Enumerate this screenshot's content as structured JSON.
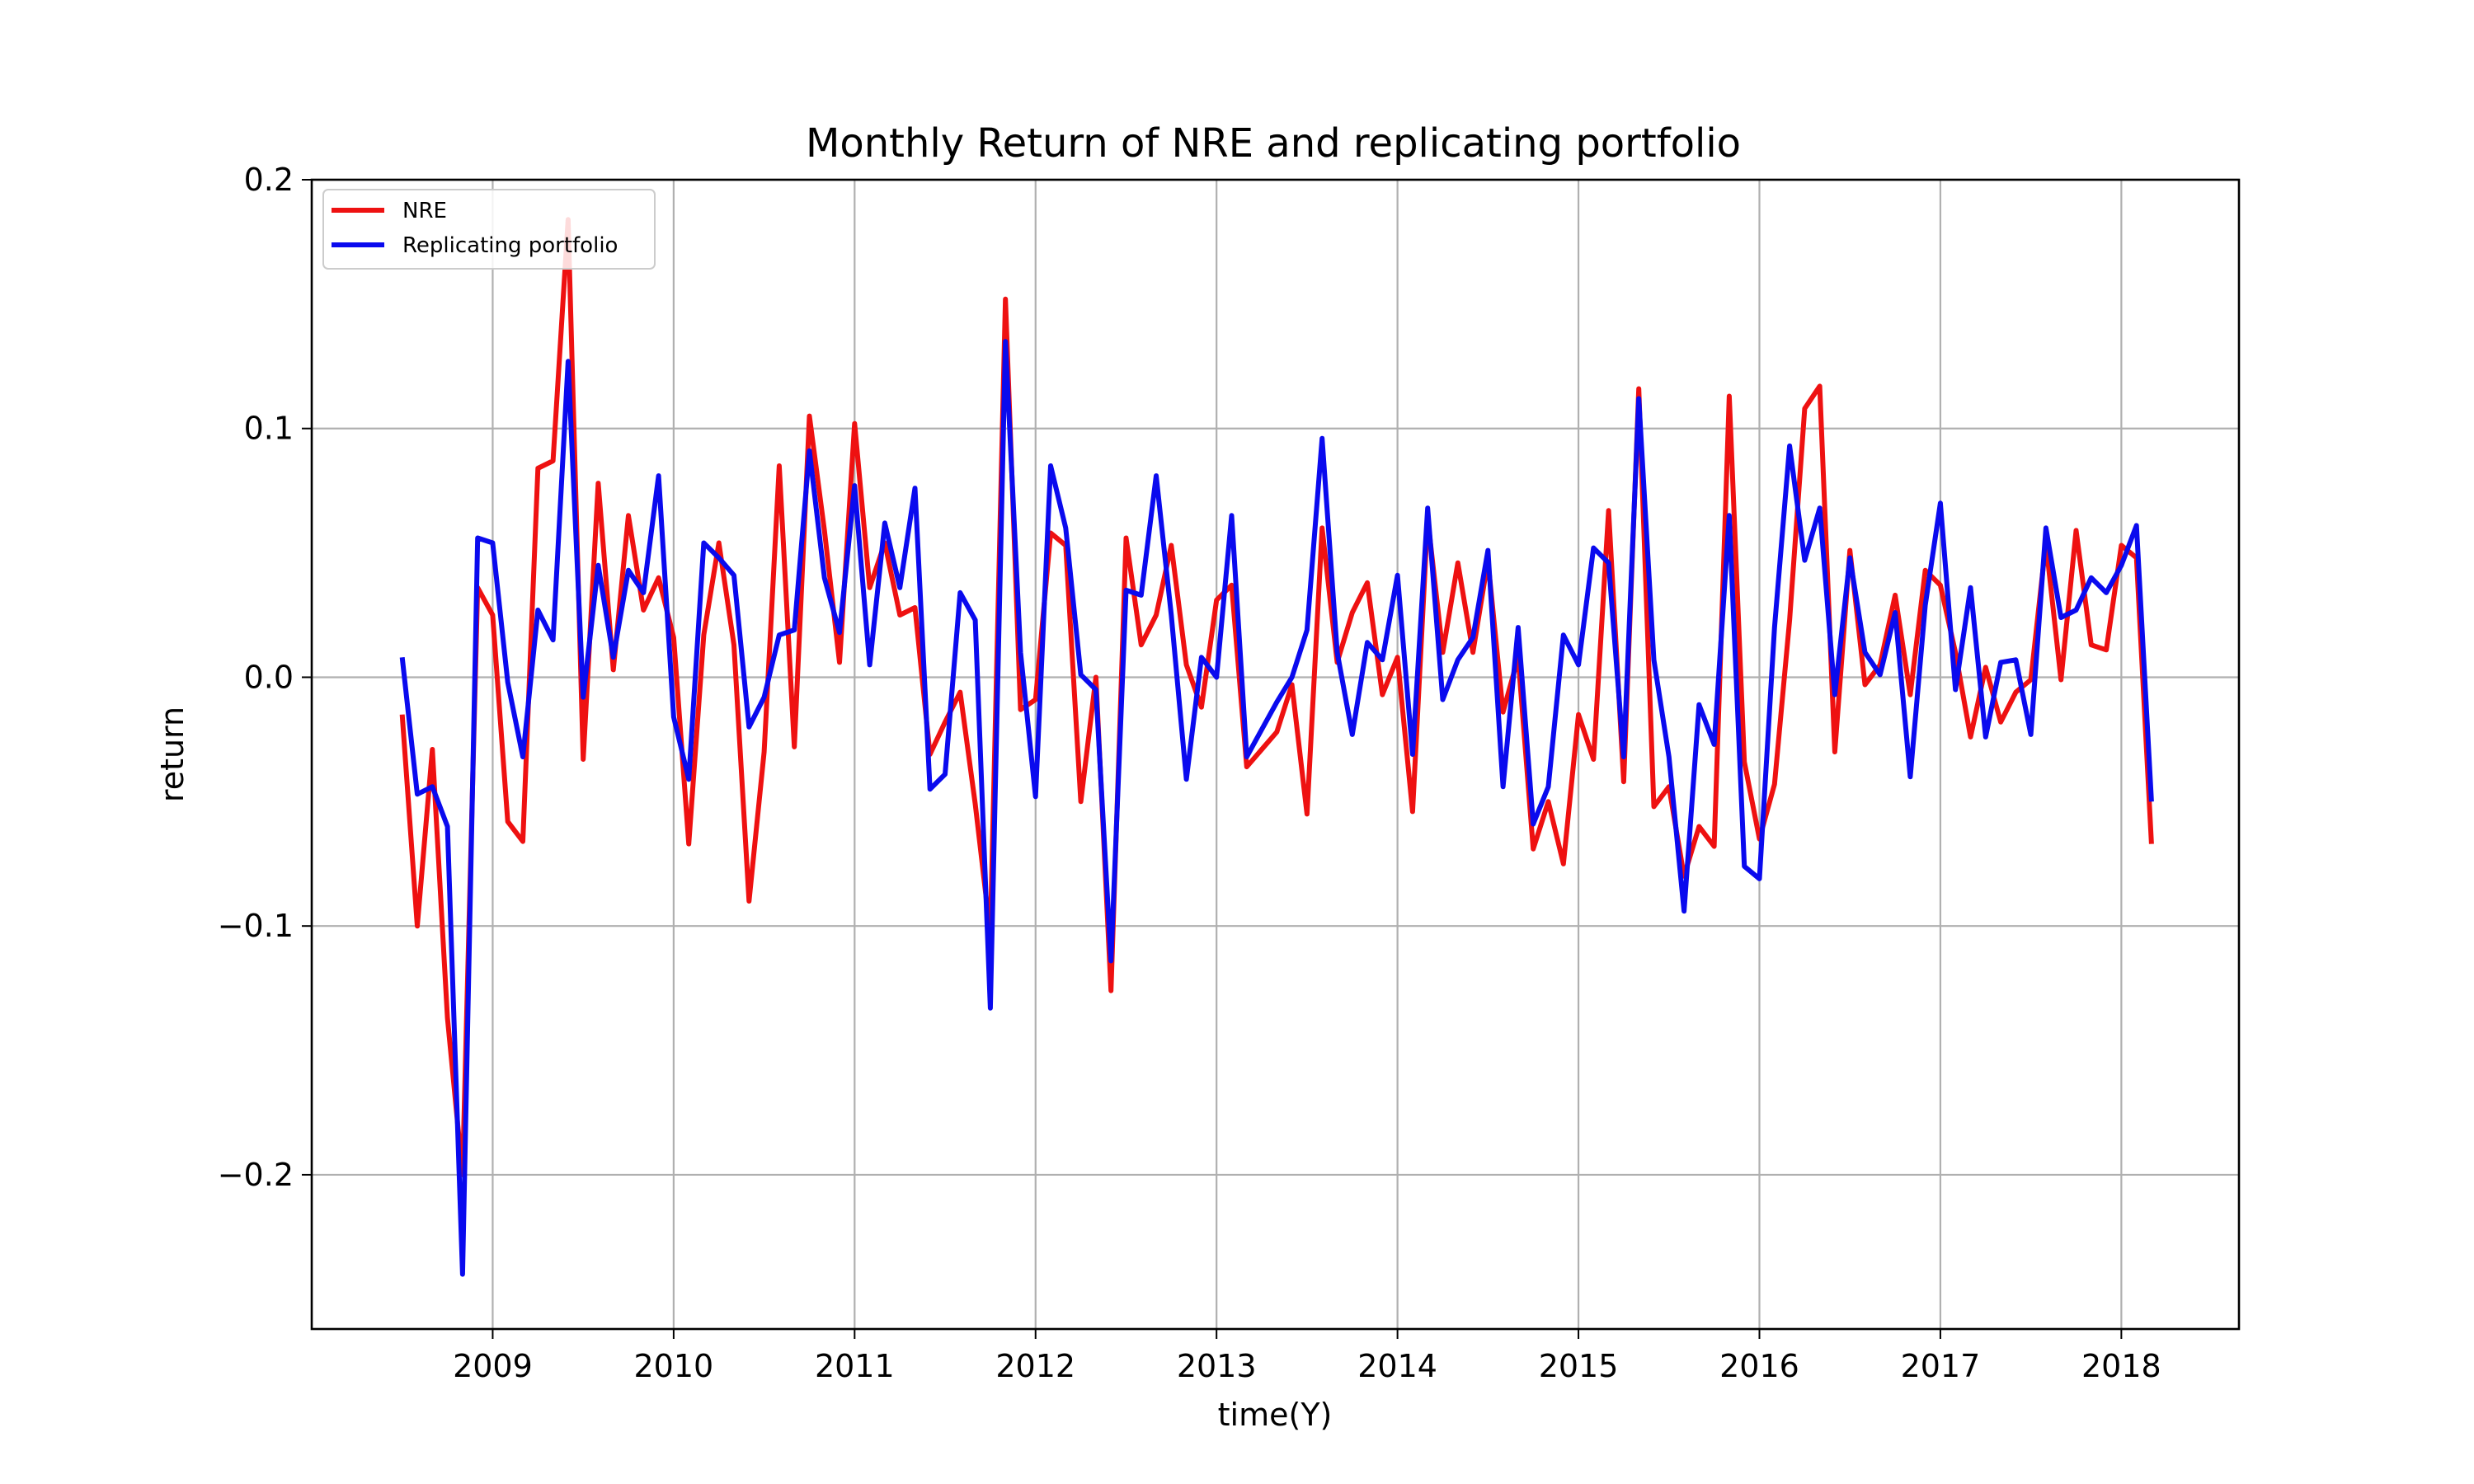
{
  "chart_data": {
    "type": "line",
    "title": "Monthly Return of NRE and replicating portfolio",
    "xlabel": "time(Y)",
    "ylabel": "return",
    "xlim": [
      2008.0,
      2018.65
    ],
    "ylim": [
      -0.262,
      0.2
    ],
    "x_ticks": [
      2009,
      2010,
      2011,
      2012,
      2013,
      2014,
      2015,
      2016,
      2017,
      2018
    ],
    "x_tick_labels": [
      "2009",
      "2010",
      "2011",
      "2012",
      "2013",
      "2014",
      "2015",
      "2016",
      "2017",
      "2018"
    ],
    "y_ticks": [
      -0.2,
      -0.1,
      0.0,
      0.1,
      0.2
    ],
    "y_tick_labels": [
      "−0.2",
      "−0.1",
      "0.0",
      "0.1",
      "0.2"
    ],
    "grid": true,
    "legend_position": "top-left",
    "x_start": 2008.5,
    "x_step_months": 1,
    "series": [
      {
        "name": "NRE",
        "color": "#ee1111",
        "values": [
          -0.015,
          -0.1,
          -0.029,
          -0.137,
          -0.2,
          0.036,
          0.025,
          -0.058,
          -0.066,
          0.084,
          0.087,
          0.184,
          -0.033,
          0.078,
          0.003,
          0.065,
          0.027,
          0.04,
          0.016,
          -0.067,
          0.017,
          0.054,
          0.013,
          -0.09,
          -0.03,
          0.085,
          -0.028,
          0.105,
          0.059,
          0.006,
          0.102,
          0.036,
          0.054,
          0.025,
          0.028,
          -0.031,
          -0.018,
          -0.006,
          -0.051,
          -0.103,
          0.152,
          -0.013,
          -0.009,
          0.058,
          0.053,
          -0.05,
          0.0,
          -0.126,
          0.056,
          0.013,
          0.025,
          0.053,
          0.005,
          -0.012,
          0.031,
          0.037,
          -0.036,
          -0.029,
          -0.022,
          -0.003,
          -0.055,
          0.06,
          0.006,
          0.026,
          0.038,
          -0.007,
          0.008,
          -0.054,
          0.064,
          0.01,
          0.046,
          0.01,
          0.047,
          -0.014,
          0.008,
          -0.069,
          -0.05,
          -0.075,
          -0.015,
          -0.033,
          0.067,
          -0.042,
          0.116,
          -0.052,
          -0.044,
          -0.08,
          -0.06,
          -0.068,
          0.113,
          -0.034,
          -0.065,
          -0.043,
          0.023,
          0.108,
          0.117,
          -0.03,
          0.051,
          -0.003,
          0.005,
          0.033,
          -0.007,
          0.043,
          0.037,
          0.01,
          -0.024,
          0.004,
          -0.018,
          -0.006,
          -0.001,
          0.054,
          -0.001,
          0.059,
          0.013,
          0.011,
          0.053,
          0.048,
          -0.067
        ]
      },
      {
        "name": "Replicating portfolio",
        "color": "#0a0aee",
        "values": [
          0.008,
          -0.047,
          -0.044,
          -0.06,
          -0.24,
          0.056,
          0.054,
          -0.002,
          -0.032,
          0.027,
          0.015,
          0.127,
          -0.008,
          0.045,
          0.008,
          0.043,
          0.034,
          0.081,
          -0.016,
          -0.041,
          0.054,
          0.048,
          0.041,
          -0.02,
          -0.008,
          0.017,
          0.019,
          0.091,
          0.04,
          0.018,
          0.077,
          0.005,
          0.062,
          0.036,
          0.076,
          -0.045,
          -0.039,
          0.034,
          0.023,
          -0.133,
          0.135,
          0.01,
          -0.048,
          0.085,
          0.06,
          0.001,
          -0.005,
          -0.114,
          0.035,
          0.033,
          0.081,
          0.025,
          -0.041,
          0.008,
          0.0,
          0.065,
          -0.032,
          -0.021,
          -0.01,
          0.0,
          0.019,
          0.096,
          0.01,
          -0.023,
          0.014,
          0.007,
          0.041,
          -0.031,
          0.068,
          -0.009,
          0.007,
          0.016,
          0.051,
          -0.044,
          0.02,
          -0.059,
          -0.044,
          0.017,
          0.005,
          0.052,
          0.046,
          -0.032,
          0.112,
          0.007,
          -0.032,
          -0.094,
          -0.011,
          -0.027,
          0.065,
          -0.076,
          -0.081,
          0.02,
          0.093,
          0.047,
          0.068,
          -0.007,
          0.048,
          0.01,
          0.001,
          0.026,
          -0.04,
          0.029,
          0.07,
          -0.005,
          0.036,
          -0.024,
          0.006,
          0.007,
          -0.023,
          0.06,
          0.024,
          0.027,
          0.04,
          0.034,
          0.045,
          0.061,
          -0.05
        ]
      }
    ]
  }
}
